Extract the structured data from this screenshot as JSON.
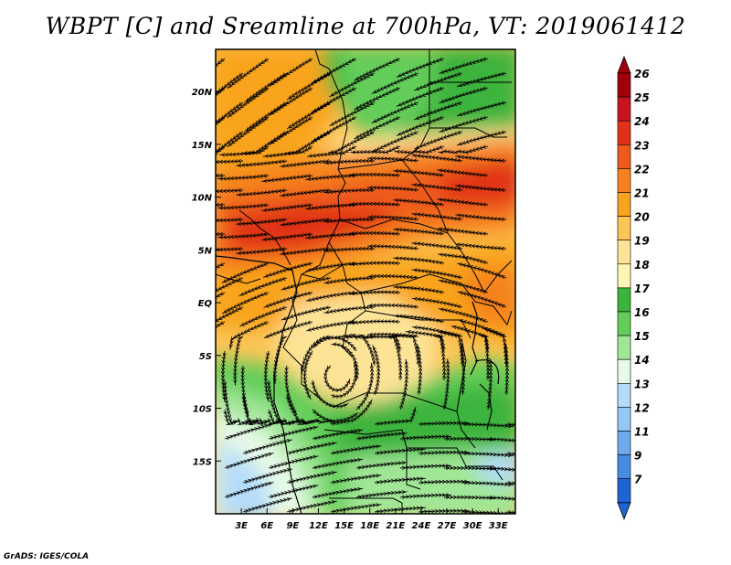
{
  "title": "WBPT [C] and Sreamline at 700hPa, VT: 2019061412",
  "credit": "GrADS: IGES/COLA",
  "map": {
    "lon_range": [
      0,
      35
    ],
    "lat_range": [
      -20,
      24
    ],
    "lon_ticks": [
      {
        "value": 3,
        "label": "3E"
      },
      {
        "value": 6,
        "label": "6E"
      },
      {
        "value": 9,
        "label": "9E"
      },
      {
        "value": 12,
        "label": "12E"
      },
      {
        "value": 15,
        "label": "15E"
      },
      {
        "value": 18,
        "label": "18E"
      },
      {
        "value": 21,
        "label": "21E"
      },
      {
        "value": 24,
        "label": "24E"
      },
      {
        "value": 27,
        "label": "27E"
      },
      {
        "value": 30,
        "label": "30E"
      },
      {
        "value": 33,
        "label": "33E"
      }
    ],
    "lat_ticks": [
      {
        "value": 20,
        "label": "20N"
      },
      {
        "value": 15,
        "label": "15N"
      },
      {
        "value": 10,
        "label": "10N"
      },
      {
        "value": 5,
        "label": "5N"
      },
      {
        "value": 0,
        "label": "EQ"
      },
      {
        "value": -5,
        "label": "5S"
      },
      {
        "value": -10,
        "label": "10S"
      },
      {
        "value": -15,
        "label": "15S"
      }
    ]
  },
  "colorbar": {
    "levels": [
      {
        "label": "26",
        "color": "#a0000a"
      },
      {
        "label": "25",
        "color": "#c8141e"
      },
      {
        "label": "24",
        "color": "#e03218"
      },
      {
        "label": "23",
        "color": "#ee5a1e"
      },
      {
        "label": "22",
        "color": "#f5821e"
      },
      {
        "label": "21",
        "color": "#f9a41e"
      },
      {
        "label": "20",
        "color": "#fbc557"
      },
      {
        "label": "19",
        "color": "#fde396"
      },
      {
        "label": "18",
        "color": "#fdf6b4"
      },
      {
        "label": "17",
        "color": "#3cb43c"
      },
      {
        "label": "16",
        "color": "#64cd5a"
      },
      {
        "label": "15",
        "color": "#a0e696"
      },
      {
        "label": "14",
        "color": "#e6fae6"
      },
      {
        "label": "13",
        "color": "#b4dcfa"
      },
      {
        "label": "12",
        "color": "#96c8f5"
      },
      {
        "label": "11",
        "color": "#6eaaeb"
      },
      {
        "label": "9",
        "color": "#468ce1"
      },
      {
        "label": "7",
        "color": "#1e64d2"
      }
    ],
    "low_end_color": "#1e64d2",
    "high_end_color": "#a0000a"
  }
}
